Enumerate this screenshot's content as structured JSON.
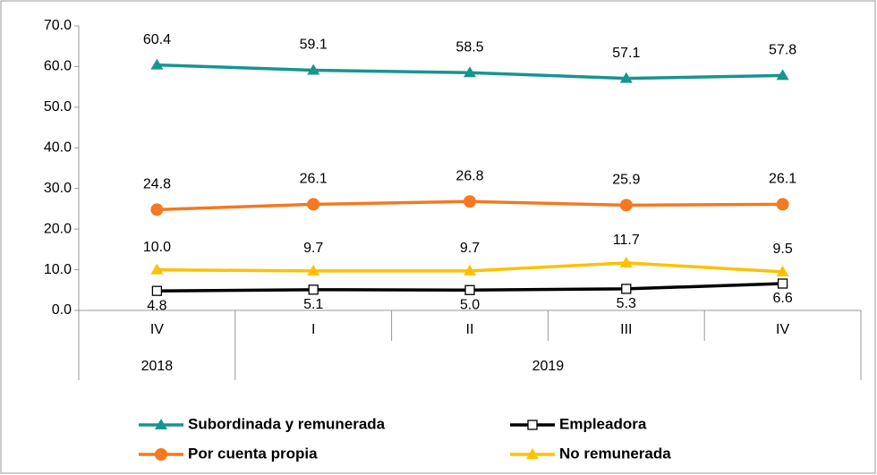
{
  "chart_data": {
    "type": "line",
    "categories": [
      "IV",
      "I",
      "II",
      "III",
      "IV"
    ],
    "x_groups": [
      {
        "label": "2018",
        "span": 1
      },
      {
        "label": "2019",
        "span": 4
      }
    ],
    "ylim": [
      0,
      70
    ],
    "yticks": [
      {
        "value": 0,
        "label": "0.0"
      },
      {
        "value": 10,
        "label": "10.0"
      },
      {
        "value": 20,
        "label": "20.0"
      },
      {
        "value": 30,
        "label": "30.0"
      },
      {
        "value": 40,
        "label": "40.0"
      },
      {
        "value": 50,
        "label": "50.0"
      },
      {
        "value": 60,
        "label": "60.0"
      },
      {
        "value": 70,
        "label": "70.0"
      }
    ],
    "grid": false,
    "series": [
      {
        "name": "Subordinada y remunerada",
        "color": "#17958f",
        "marker": "triangle",
        "values": [
          60.4,
          59.1,
          58.5,
          57.1,
          57.8
        ],
        "value_labels": [
          "60.4",
          "59.1",
          "58.5",
          "57.1",
          "57.8"
        ]
      },
      {
        "name": "Empleadora",
        "color": "#000000",
        "marker": "square",
        "values": [
          4.8,
          5.1,
          5.0,
          5.3,
          6.6
        ],
        "value_labels": [
          "4.8",
          "5.1",
          "5.0",
          "5.3",
          "6.6"
        ]
      },
      {
        "name": "Por cuenta propia",
        "color": "#f47920",
        "marker": "circle",
        "values": [
          24.8,
          26.1,
          26.8,
          25.9,
          26.1
        ],
        "value_labels": [
          "24.8",
          "26.1",
          "26.8",
          "25.9",
          "26.1"
        ]
      },
      {
        "name": "No remunerada",
        "color": "#ffc000",
        "marker": "triangle",
        "values": [
          10.0,
          9.7,
          9.7,
          11.7,
          9.5
        ],
        "value_labels": [
          "10.0",
          "9.7",
          "9.7",
          "11.7",
          "9.5"
        ]
      }
    ]
  }
}
